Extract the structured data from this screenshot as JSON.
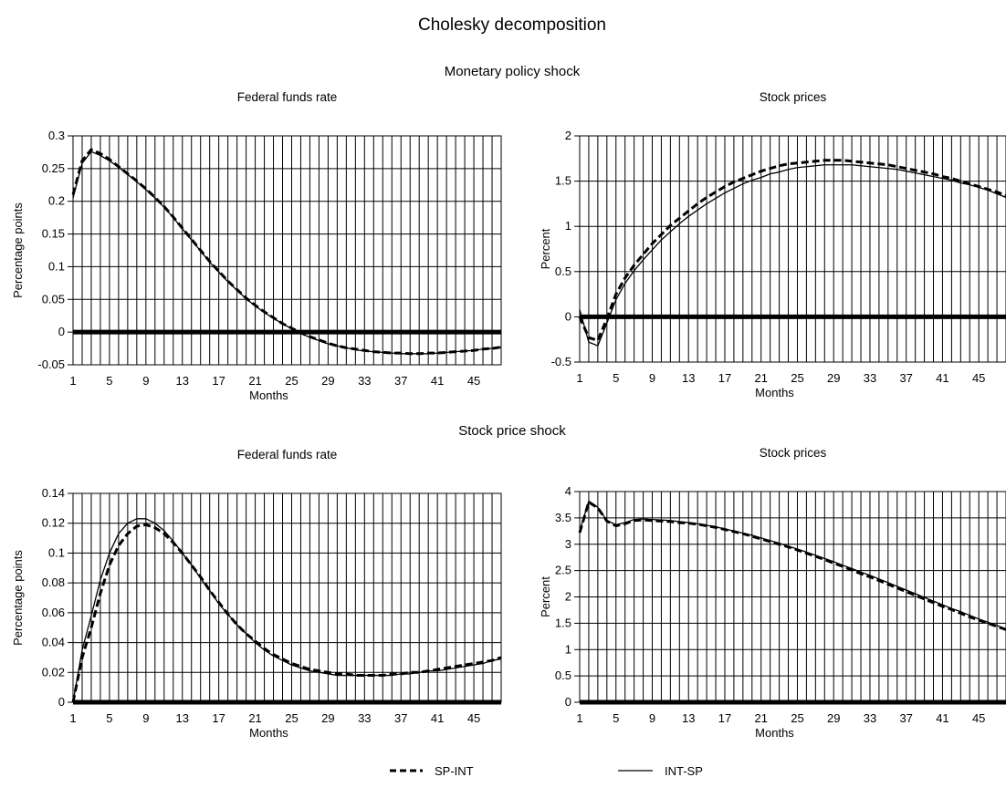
{
  "figure": {
    "title": "Cholesky decomposition",
    "section_titles": [
      "Monetary policy shock",
      "Stock price shock"
    ]
  },
  "legend": {
    "items": [
      {
        "label": "SP-INT",
        "style": "dashed"
      },
      {
        "label": "INT-SP",
        "style": "solid"
      }
    ]
  },
  "chart_data": [
    {
      "type": "line",
      "title": "Federal funds rate",
      "section": "Monetary policy shock",
      "xlabel": "Months",
      "ylabel": "Percentage points",
      "xlim": [
        1,
        48
      ],
      "xticks": [
        1,
        5,
        9,
        13,
        17,
        21,
        25,
        29,
        33,
        37,
        41,
        45
      ],
      "ylim": [
        -0.05,
        0.3
      ],
      "yticks": [
        -0.05,
        0,
        0.05,
        0.1,
        0.15,
        0.2,
        0.25,
        0.3
      ],
      "ytick_labels": [
        "-0.05",
        "0",
        "0.05",
        "0.1",
        "0.15",
        "0.2",
        "0.25",
        "0.3"
      ],
      "grid": true,
      "zero_line": true,
      "x": [
        1,
        2,
        3,
        4,
        5,
        6,
        7,
        8,
        9,
        10,
        11,
        12,
        13,
        14,
        15,
        16,
        17,
        18,
        19,
        20,
        21,
        22,
        23,
        24,
        25,
        26,
        27,
        28,
        29,
        30,
        31,
        32,
        33,
        34,
        35,
        36,
        37,
        38,
        39,
        40,
        41,
        42,
        43,
        44,
        45,
        46,
        47,
        48
      ],
      "series": [
        {
          "name": "SP-INT",
          "style": "dashed",
          "values": [
            0.21,
            0.262,
            0.279,
            0.273,
            0.264,
            0.253,
            0.242,
            0.231,
            0.219,
            0.206,
            0.192,
            0.176,
            0.159,
            0.142,
            0.125,
            0.108,
            0.093,
            0.078,
            0.065,
            0.052,
            0.041,
            0.031,
            0.022,
            0.013,
            0.006,
            -0.001,
            -0.007,
            -0.012,
            -0.017,
            -0.021,
            -0.024,
            -0.026,
            -0.028,
            -0.03,
            -0.031,
            -0.032,
            -0.032,
            -0.033,
            -0.033,
            -0.032,
            -0.032,
            -0.031,
            -0.03,
            -0.029,
            -0.028,
            -0.026,
            -0.025,
            -0.023
          ]
        },
        {
          "name": "INT-SP",
          "style": "solid",
          "values": [
            0.205,
            0.258,
            0.276,
            0.27,
            0.262,
            0.252,
            0.241,
            0.23,
            0.218,
            0.205,
            0.191,
            0.175,
            0.158,
            0.141,
            0.124,
            0.107,
            0.092,
            0.077,
            0.064,
            0.051,
            0.04,
            0.03,
            0.021,
            0.013,
            0.005,
            -0.002,
            -0.008,
            -0.013,
            -0.018,
            -0.021,
            -0.024,
            -0.027,
            -0.029,
            -0.03,
            -0.031,
            -0.032,
            -0.033,
            -0.033,
            -0.033,
            -0.033,
            -0.032,
            -0.031,
            -0.03,
            -0.029,
            -0.028,
            -0.026,
            -0.025,
            -0.023
          ]
        }
      ]
    },
    {
      "type": "line",
      "title": "Stock prices",
      "section": "Monetary policy shock",
      "xlabel": "Months",
      "ylabel": "Percent",
      "xlim": [
        1,
        48
      ],
      "xticks": [
        1,
        5,
        9,
        13,
        17,
        21,
        25,
        29,
        33,
        37,
        41,
        45
      ],
      "ylim": [
        -0.5,
        2
      ],
      "yticks": [
        -0.5,
        0,
        0.5,
        1,
        1.5,
        2
      ],
      "ytick_labels": [
        "-0.5",
        "0",
        "0.5",
        "1",
        "1.5",
        "2"
      ],
      "grid": true,
      "zero_line": true,
      "x": [
        1,
        2,
        3,
        4,
        5,
        6,
        7,
        8,
        9,
        10,
        11,
        12,
        13,
        14,
        15,
        16,
        17,
        18,
        19,
        20,
        21,
        22,
        23,
        24,
        25,
        26,
        27,
        28,
        29,
        30,
        31,
        32,
        33,
        34,
        35,
        36,
        37,
        38,
        39,
        40,
        41,
        42,
        43,
        44,
        45,
        46,
        47,
        48
      ],
      "series": [
        {
          "name": "SP-INT",
          "style": "dashed",
          "values": [
            0.0,
            -0.23,
            -0.26,
            -0.02,
            0.25,
            0.43,
            0.57,
            0.69,
            0.81,
            0.91,
            1.01,
            1.09,
            1.17,
            1.25,
            1.32,
            1.38,
            1.44,
            1.49,
            1.53,
            1.57,
            1.61,
            1.64,
            1.67,
            1.69,
            1.7,
            1.71,
            1.72,
            1.73,
            1.73,
            1.73,
            1.72,
            1.71,
            1.7,
            1.69,
            1.68,
            1.66,
            1.64,
            1.62,
            1.6,
            1.58,
            1.55,
            1.53,
            1.5,
            1.47,
            1.44,
            1.41,
            1.38,
            1.34
          ]
        },
        {
          "name": "INT-SP",
          "style": "solid",
          "values": [
            0.08,
            -0.28,
            -0.32,
            -0.07,
            0.19,
            0.37,
            0.51,
            0.63,
            0.74,
            0.85,
            0.94,
            1.03,
            1.11,
            1.18,
            1.25,
            1.31,
            1.37,
            1.42,
            1.47,
            1.51,
            1.54,
            1.58,
            1.6,
            1.63,
            1.65,
            1.66,
            1.67,
            1.68,
            1.68,
            1.68,
            1.68,
            1.67,
            1.66,
            1.65,
            1.64,
            1.63,
            1.61,
            1.59,
            1.57,
            1.55,
            1.53,
            1.51,
            1.48,
            1.46,
            1.43,
            1.4,
            1.36,
            1.32
          ]
        }
      ]
    },
    {
      "type": "line",
      "title": "Federal funds rate",
      "section": "Stock price shock",
      "xlabel": "Months",
      "ylabel": "Percentage points",
      "xlim": [
        1,
        48
      ],
      "xticks": [
        1,
        5,
        9,
        13,
        17,
        21,
        25,
        29,
        33,
        37,
        41,
        45
      ],
      "ylim": [
        0,
        0.14
      ],
      "yticks": [
        0,
        0.02,
        0.04,
        0.06,
        0.08,
        0.1,
        0.12,
        0.14
      ],
      "ytick_labels": [
        "0",
        "0.02",
        "0.04",
        "0.06",
        "0.08",
        "0.1",
        "0.12",
        "0.14"
      ],
      "grid": true,
      "zero_line": true,
      "x": [
        1,
        2,
        3,
        4,
        5,
        6,
        7,
        8,
        9,
        10,
        11,
        12,
        13,
        14,
        15,
        16,
        17,
        18,
        19,
        20,
        21,
        22,
        23,
        24,
        25,
        26,
        27,
        28,
        29,
        30,
        31,
        32,
        33,
        34,
        35,
        36,
        37,
        38,
        39,
        40,
        41,
        42,
        43,
        44,
        45,
        46,
        47,
        48
      ],
      "series": [
        {
          "name": "SP-INT",
          "style": "dashed",
          "values": [
            0.0,
            0.03,
            0.05,
            0.073,
            0.092,
            0.105,
            0.113,
            0.118,
            0.119,
            0.117,
            0.113,
            0.107,
            0.1,
            0.092,
            0.084,
            0.075,
            0.067,
            0.059,
            0.052,
            0.046,
            0.041,
            0.036,
            0.032,
            0.029,
            0.026,
            0.024,
            0.022,
            0.021,
            0.02,
            0.019,
            0.019,
            0.018,
            0.018,
            0.018,
            0.018,
            0.019,
            0.019,
            0.02,
            0.02,
            0.021,
            0.022,
            0.023,
            0.024,
            0.025,
            0.026,
            0.027,
            0.028,
            0.03
          ]
        },
        {
          "name": "INT-SP",
          "style": "solid",
          "values": [
            0.0,
            0.035,
            0.058,
            0.082,
            0.1,
            0.113,
            0.12,
            0.123,
            0.123,
            0.12,
            0.115,
            0.108,
            0.1,
            0.092,
            0.083,
            0.075,
            0.066,
            0.059,
            0.052,
            0.046,
            0.04,
            0.035,
            0.031,
            0.028,
            0.025,
            0.023,
            0.021,
            0.02,
            0.019,
            0.018,
            0.018,
            0.018,
            0.018,
            0.018,
            0.018,
            0.018,
            0.019,
            0.019,
            0.02,
            0.021,
            0.021,
            0.022,
            0.023,
            0.024,
            0.025,
            0.026,
            0.028,
            0.029
          ]
        }
      ]
    },
    {
      "type": "line",
      "title": "Stock prices",
      "section": "Stock price shock",
      "xlabel": "Months",
      "ylabel": "Percent",
      "xlim": [
        1,
        48
      ],
      "xticks": [
        1,
        5,
        9,
        13,
        17,
        21,
        25,
        29,
        33,
        37,
        41,
        45
      ],
      "ylim": [
        0,
        4
      ],
      "yticks": [
        0,
        0.5,
        1,
        1.5,
        2,
        2.5,
        3,
        3.5,
        4
      ],
      "ytick_labels": [
        "0",
        "0.5",
        "1",
        "1.5",
        "2",
        "2.5",
        "3",
        "3.5",
        "4"
      ],
      "grid": true,
      "zero_line": true,
      "x": [
        1,
        2,
        3,
        4,
        5,
        6,
        7,
        8,
        9,
        10,
        11,
        12,
        13,
        14,
        15,
        16,
        17,
        18,
        19,
        20,
        21,
        22,
        23,
        24,
        25,
        26,
        27,
        28,
        29,
        30,
        31,
        32,
        33,
        34,
        35,
        36,
        37,
        38,
        39,
        40,
        41,
        42,
        43,
        44,
        45,
        46,
        47,
        48
      ],
      "series": [
        {
          "name": "SP-INT",
          "style": "dashed",
          "values": [
            3.22,
            3.8,
            3.69,
            3.44,
            3.35,
            3.39,
            3.45,
            3.46,
            3.45,
            3.44,
            3.43,
            3.41,
            3.4,
            3.38,
            3.35,
            3.32,
            3.28,
            3.24,
            3.2,
            3.15,
            3.1,
            3.05,
            3.0,
            2.95,
            2.89,
            2.83,
            2.77,
            2.71,
            2.64,
            2.58,
            2.51,
            2.44,
            2.38,
            2.31,
            2.24,
            2.17,
            2.1,
            2.03,
            1.96,
            1.89,
            1.82,
            1.76,
            1.69,
            1.62,
            1.56,
            1.5,
            1.44,
            1.38
          ]
        },
        {
          "name": "INT-SP",
          "style": "solid",
          "values": [
            3.25,
            3.82,
            3.7,
            3.45,
            3.37,
            3.41,
            3.47,
            3.48,
            3.47,
            3.46,
            3.45,
            3.43,
            3.41,
            3.39,
            3.36,
            3.33,
            3.29,
            3.25,
            3.21,
            3.17,
            3.12,
            3.07,
            3.02,
            2.96,
            2.91,
            2.85,
            2.79,
            2.73,
            2.67,
            2.6,
            2.54,
            2.47,
            2.41,
            2.34,
            2.27,
            2.2,
            2.13,
            2.06,
            1.99,
            1.92,
            1.85,
            1.78,
            1.72,
            1.65,
            1.58,
            1.52,
            1.46,
            1.39
          ]
        }
      ]
    }
  ]
}
